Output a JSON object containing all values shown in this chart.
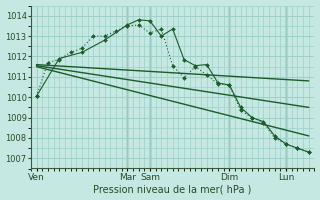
{
  "xlabel": "Pression niveau de la mer( hPa )",
  "background_color": "#c5e8e2",
  "grid_color": "#9ecfc7",
  "line_color": "#1a5c2a",
  "xlim": [
    0,
    100
  ],
  "ylim": [
    1006.5,
    1014.5
  ],
  "yticks": [
    1007,
    1008,
    1009,
    1010,
    1011,
    1012,
    1013,
    1014
  ],
  "xtick_positions": [
    2,
    34,
    42,
    70,
    90
  ],
  "xtick_labels": [
    "Ven",
    "Mar",
    "Sam",
    "Dim",
    "Lun"
  ],
  "vlines": [
    34,
    42,
    70,
    90
  ],
  "series1_x": [
    2,
    6,
    10,
    14,
    18,
    22,
    26,
    30,
    34,
    38,
    42,
    46,
    50,
    54,
    58,
    62,
    66,
    70,
    74,
    78,
    82,
    86,
    90,
    94,
    98
  ],
  "series1_y": [
    1010.05,
    1011.7,
    1011.85,
    1012.2,
    1012.4,
    1013.0,
    1013.0,
    1013.25,
    1013.5,
    1013.55,
    1013.15,
    1013.35,
    1011.55,
    1010.95,
    1011.5,
    1011.1,
    1010.65,
    1010.6,
    1009.35,
    1009.0,
    1008.75,
    1008.0,
    1007.7,
    1007.5,
    1007.3
  ],
  "series2_x": [
    2,
    10,
    18,
    26,
    34,
    38,
    42,
    46,
    50,
    54,
    58,
    62,
    66,
    70,
    74,
    78,
    82,
    86,
    90,
    94,
    98
  ],
  "series2_y": [
    1010.05,
    1011.9,
    1012.2,
    1012.8,
    1013.55,
    1013.8,
    1013.75,
    1013.0,
    1013.35,
    1011.85,
    1011.55,
    1011.6,
    1010.7,
    1010.6,
    1009.5,
    1009.0,
    1008.8,
    1008.1,
    1007.7,
    1007.5,
    1007.3
  ],
  "trend1_x": [
    2,
    98
  ],
  "trend1_y": [
    1011.6,
    1010.8
  ],
  "trend2_x": [
    2,
    98
  ],
  "trend2_y": [
    1011.55,
    1009.5
  ],
  "trend3_x": [
    2,
    98
  ],
  "trend3_y": [
    1011.5,
    1008.1
  ],
  "minor_xticks": [
    2,
    4,
    6,
    8,
    10,
    12,
    14,
    16,
    18,
    20,
    22,
    24,
    26,
    28,
    30,
    32,
    34,
    36,
    38,
    40,
    42,
    44,
    46,
    48,
    50,
    52,
    54,
    56,
    58,
    60,
    62,
    64,
    66,
    68,
    70,
    72,
    74,
    76,
    78,
    80,
    82,
    84,
    86,
    88,
    90,
    92,
    94,
    96,
    98,
    100
  ]
}
